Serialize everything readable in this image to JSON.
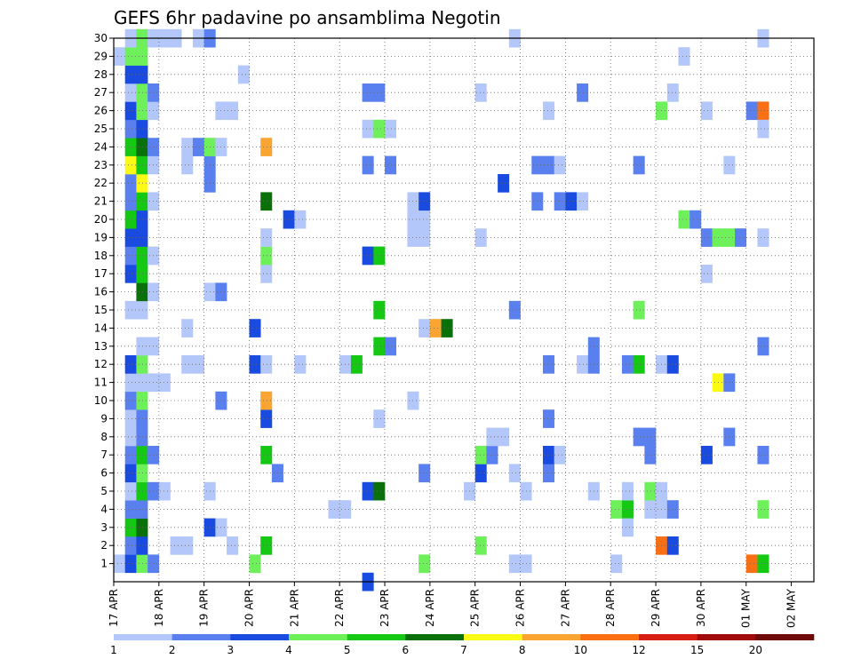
{
  "chart_data": {
    "type": "heatmap",
    "title": "GEFS 6hr padavine po ansamblima Negotin",
    "xlabel": "",
    "ylabel": "",
    "x_range": [
      0,
      62
    ],
    "y_range": [
      0,
      30
    ],
    "y_ticks": [
      "1",
      "2",
      "3",
      "4",
      "5",
      "6",
      "7",
      "8",
      "9",
      "10",
      "11",
      "12",
      "13",
      "14",
      "15",
      "16",
      "17",
      "18",
      "19",
      "20",
      "21",
      "22",
      "23",
      "24",
      "25",
      "26",
      "27",
      "28",
      "29",
      "30"
    ],
    "x_ticks": [
      {
        "label": "17 APR",
        "step": 0
      },
      {
        "label": "18 APR",
        "step": 4
      },
      {
        "label": "19 APR",
        "step": 8
      },
      {
        "label": "20 APR",
        "step": 12
      },
      {
        "label": "21 APR",
        "step": 16
      },
      {
        "label": "22 APR",
        "step": 20
      },
      {
        "label": "23 APR",
        "step": 24
      },
      {
        "label": "24 APR",
        "step": 28
      },
      {
        "label": "25 APR",
        "step": 32
      },
      {
        "label": "26 APR",
        "step": 36
      },
      {
        "label": "27 APR",
        "step": 40
      },
      {
        "label": "28 APR",
        "step": 44
      },
      {
        "label": "29 APR",
        "step": 48
      },
      {
        "label": "30 APR",
        "step": 52
      },
      {
        "label": "01 MAY",
        "step": 56
      },
      {
        "label": "02 MAY",
        "step": 60
      }
    ],
    "grid": true,
    "colorbar": {
      "labels": [
        "1",
        "2",
        "3",
        "4",
        "5",
        "6",
        "7",
        "8",
        "10",
        "12",
        "15",
        "20"
      ],
      "colors": [
        "#b4c7fa",
        "#5a80f0",
        "#1a4be0",
        "#6ef05a",
        "#14c814",
        "#0a700a",
        "#fafa14",
        "#faa532",
        "#fa6e14",
        "#d71e14",
        "#a00a0a",
        "#6e0a0a"
      ]
    },
    "cells": [
      {
        "t": 0,
        "m": 1,
        "v": 1
      },
      {
        "t": 1,
        "m": 1,
        "v": 3
      },
      {
        "t": 2,
        "m": 1,
        "v": 4
      },
      {
        "t": 3,
        "m": 1,
        "v": 2
      },
      {
        "t": 1,
        "m": 2,
        "v": 2
      },
      {
        "t": 2,
        "m": 2,
        "v": 3
      },
      {
        "t": 1,
        "m": 3,
        "v": 5
      },
      {
        "t": 2,
        "m": 3,
        "v": 6
      },
      {
        "t": 1,
        "m": 4,
        "v": 2
      },
      {
        "t": 2,
        "m": 4,
        "v": 2
      },
      {
        "t": 1,
        "m": 5,
        "v": 1
      },
      {
        "t": 2,
        "m": 5,
        "v": 5
      },
      {
        "t": 3,
        "m": 5,
        "v": 2
      },
      {
        "t": 4,
        "m": 5,
        "v": 1
      },
      {
        "t": 1,
        "m": 6,
        "v": 3
      },
      {
        "t": 2,
        "m": 6,
        "v": 4
      },
      {
        "t": 1,
        "m": 7,
        "v": 2
      },
      {
        "t": 2,
        "m": 7,
        "v": 5
      },
      {
        "t": 3,
        "m": 7,
        "v": 2
      },
      {
        "t": 1,
        "m": 8,
        "v": 1
      },
      {
        "t": 2,
        "m": 8,
        "v": 2
      },
      {
        "t": 1,
        "m": 9,
        "v": 1
      },
      {
        "t": 2,
        "m": 9,
        "v": 2
      },
      {
        "t": 1,
        "m": 10,
        "v": 2
      },
      {
        "t": 2,
        "m": 10,
        "v": 4
      },
      {
        "t": 1,
        "m": 11,
        "v": 1
      },
      {
        "t": 2,
        "m": 11,
        "v": 1
      },
      {
        "t": 3,
        "m": 11,
        "v": 1
      },
      {
        "t": 4,
        "m": 11,
        "v": 1
      },
      {
        "t": 1,
        "m": 12,
        "v": 3
      },
      {
        "t": 2,
        "m": 12,
        "v": 4
      },
      {
        "t": 2,
        "m": 13,
        "v": 1
      },
      {
        "t": 3,
        "m": 13,
        "v": 1
      },
      {
        "t": 1,
        "m": 15,
        "v": 1
      },
      {
        "t": 2,
        "m": 15,
        "v": 1
      },
      {
        "t": 2,
        "m": 16,
        "v": 6
      },
      {
        "t": 3,
        "m": 16,
        "v": 1
      },
      {
        "t": 1,
        "m": 17,
        "v": 3
      },
      {
        "t": 2,
        "m": 17,
        "v": 5
      },
      {
        "t": 1,
        "m": 18,
        "v": 2
      },
      {
        "t": 2,
        "m": 18,
        "v": 5
      },
      {
        "t": 3,
        "m": 18,
        "v": 1
      },
      {
        "t": 1,
        "m": 19,
        "v": 3
      },
      {
        "t": 2,
        "m": 19,
        "v": 3
      },
      {
        "t": 1,
        "m": 20,
        "v": 5
      },
      {
        "t": 2,
        "m": 20,
        "v": 3
      },
      {
        "t": 1,
        "m": 21,
        "v": 2
      },
      {
        "t": 2,
        "m": 21,
        "v": 5
      },
      {
        "t": 3,
        "m": 21,
        "v": 1
      },
      {
        "t": 1,
        "m": 22,
        "v": 2
      },
      {
        "t": 2,
        "m": 22,
        "v": 7
      },
      {
        "t": 1,
        "m": 23,
        "v": 7
      },
      {
        "t": 2,
        "m": 23,
        "v": 5
      },
      {
        "t": 3,
        "m": 23,
        "v": 1
      },
      {
        "t": 1,
        "m": 24,
        "v": 5
      },
      {
        "t": 2,
        "m": 24,
        "v": 6
      },
      {
        "t": 3,
        "m": 24,
        "v": 2
      },
      {
        "t": 1,
        "m": 25,
        "v": 2
      },
      {
        "t": 2,
        "m": 25,
        "v": 3
      },
      {
        "t": 1,
        "m": 26,
        "v": 3
      },
      {
        "t": 2,
        "m": 26,
        "v": 4
      },
      {
        "t": 3,
        "m": 26,
        "v": 1
      },
      {
        "t": 1,
        "m": 27,
        "v": 1
      },
      {
        "t": 2,
        "m": 27,
        "v": 4
      },
      {
        "t": 3,
        "m": 27,
        "v": 2
      },
      {
        "t": 1,
        "m": 28,
        "v": 3
      },
      {
        "t": 2,
        "m": 28,
        "v": 3
      },
      {
        "t": 0,
        "m": 29,
        "v": 1
      },
      {
        "t": 1,
        "m": 29,
        "v": 4
      },
      {
        "t": 2,
        "m": 29,
        "v": 4
      },
      {
        "t": 1,
        "m": 30,
        "v": 1
      },
      {
        "t": 2,
        "m": 30,
        "v": 4
      },
      {
        "t": 3,
        "m": 30,
        "v": 1
      },
      {
        "t": 4,
        "m": 30,
        "v": 1
      },
      {
        "t": 5,
        "m": 30,
        "v": 1
      },
      {
        "t": 7,
        "m": 30,
        "v": 1
      },
      {
        "t": 8,
        "m": 30,
        "v": 2
      },
      {
        "t": 5,
        "m": 2,
        "v": 1
      },
      {
        "t": 6,
        "m": 2,
        "v": 1
      },
      {
        "t": 8,
        "m": 3,
        "v": 3
      },
      {
        "t": 9,
        "m": 3,
        "v": 1
      },
      {
        "t": 8,
        "m": 5,
        "v": 1
      },
      {
        "t": 6,
        "m": 12,
        "v": 1
      },
      {
        "t": 7,
        "m": 12,
        "v": 1
      },
      {
        "t": 9,
        "m": 10,
        "v": 2
      },
      {
        "t": 6,
        "m": 14,
        "v": 1
      },
      {
        "t": 8,
        "m": 16,
        "v": 1
      },
      {
        "t": 9,
        "m": 16,
        "v": 2
      },
      {
        "t": 8,
        "m": 22,
        "v": 2
      },
      {
        "t": 6,
        "m": 23,
        "v": 1
      },
      {
        "t": 8,
        "m": 23,
        "v": 2
      },
      {
        "t": 6,
        "m": 24,
        "v": 1
      },
      {
        "t": 7,
        "m": 24,
        "v": 2
      },
      {
        "t": 8,
        "m": 24,
        "v": 4
      },
      {
        "t": 9,
        "m": 24,
        "v": 1
      },
      {
        "t": 9,
        "m": 26,
        "v": 1
      },
      {
        "t": 10,
        "m": 26,
        "v": 1
      },
      {
        "t": 10,
        "m": 2,
        "v": 1
      },
      {
        "t": 12,
        "m": 1,
        "v": 4
      },
      {
        "t": 13,
        "m": 2,
        "v": 5
      },
      {
        "t": 12,
        "m": 12,
        "v": 3
      },
      {
        "t": 13,
        "m": 12,
        "v": 1
      },
      {
        "t": 12,
        "m": 14,
        "v": 3
      },
      {
        "t": 13,
        "m": 9,
        "v": 3
      },
      {
        "t": 13,
        "m": 10,
        "v": 8
      },
      {
        "t": 14,
        "m": 6,
        "v": 2
      },
      {
        "t": 13,
        "m": 7,
        "v": 5
      },
      {
        "t": 13,
        "m": 17,
        "v": 1
      },
      {
        "t": 13,
        "m": 18,
        "v": 4
      },
      {
        "t": 13,
        "m": 19,
        "v": 1
      },
      {
        "t": 13,
        "m": 21,
        "v": 6
      },
      {
        "t": 13,
        "m": 24,
        "v": 8
      },
      {
        "t": 11,
        "m": 28,
        "v": 1
      },
      {
        "t": 15,
        "m": 20,
        "v": 3
      },
      {
        "t": 16,
        "m": 20,
        "v": 1
      },
      {
        "t": 16,
        "m": 12,
        "v": 1
      },
      {
        "t": 19,
        "m": 4,
        "v": 1
      },
      {
        "t": 20,
        "m": 4,
        "v": 1
      },
      {
        "t": 20,
        "m": 12,
        "v": 1
      },
      {
        "t": 21,
        "m": 12,
        "v": 5
      },
      {
        "t": 22,
        "m": 0,
        "v": 3
      },
      {
        "t": 22,
        "m": 5,
        "v": 3
      },
      {
        "t": 23,
        "m": 5,
        "v": 6
      },
      {
        "t": 23,
        "m": 9,
        "v": 1
      },
      {
        "t": 23,
        "m": 13,
        "v": 5
      },
      {
        "t": 24,
        "m": 13,
        "v": 2
      },
      {
        "t": 23,
        "m": 15,
        "v": 5
      },
      {
        "t": 22,
        "m": 18,
        "v": 3
      },
      {
        "t": 23,
        "m": 18,
        "v": 5
      },
      {
        "t": 22,
        "m": 23,
        "v": 2
      },
      {
        "t": 24,
        "m": 23,
        "v": 2
      },
      {
        "t": 22,
        "m": 25,
        "v": 1
      },
      {
        "t": 23,
        "m": 25,
        "v": 4
      },
      {
        "t": 24,
        "m": 25,
        "v": 1
      },
      {
        "t": 22,
        "m": 27,
        "v": 2
      },
      {
        "t": 23,
        "m": 27,
        "v": 2
      },
      {
        "t": 27,
        "m": 1,
        "v": 4
      },
      {
        "t": 27,
        "m": 6,
        "v": 2
      },
      {
        "t": 26,
        "m": 10,
        "v": 1
      },
      {
        "t": 27,
        "m": 14,
        "v": 1
      },
      {
        "t": 28,
        "m": 14,
        "v": 8
      },
      {
        "t": 29,
        "m": 14,
        "v": 6
      },
      {
        "t": 26,
        "m": 19,
        "v": 1
      },
      {
        "t": 27,
        "m": 19,
        "v": 1
      },
      {
        "t": 26,
        "m": 20,
        "v": 1
      },
      {
        "t": 27,
        "m": 20,
        "v": 1
      },
      {
        "t": 26,
        "m": 21,
        "v": 1
      },
      {
        "t": 27,
        "m": 21,
        "v": 3
      },
      {
        "t": 32,
        "m": 2,
        "v": 4
      },
      {
        "t": 31,
        "m": 5,
        "v": 1
      },
      {
        "t": 32,
        "m": 6,
        "v": 3
      },
      {
        "t": 32,
        "m": 7,
        "v": 4
      },
      {
        "t": 33,
        "m": 7,
        "v": 2
      },
      {
        "t": 33,
        "m": 8,
        "v": 1
      },
      {
        "t": 32,
        "m": 19,
        "v": 1
      },
      {
        "t": 32,
        "m": 27,
        "v": 1
      },
      {
        "t": 34,
        "m": 8,
        "v": 1
      },
      {
        "t": 34,
        "m": 22,
        "v": 3
      },
      {
        "t": 35,
        "m": 1,
        "v": 1
      },
      {
        "t": 35,
        "m": 15,
        "v": 2
      },
      {
        "t": 35,
        "m": 30,
        "v": 1
      },
      {
        "t": 36,
        "m": 1,
        "v": 1
      },
      {
        "t": 36,
        "m": 5,
        "v": 1
      },
      {
        "t": 35,
        "m": 6,
        "v": 1
      },
      {
        "t": 38,
        "m": 6,
        "v": 2
      },
      {
        "t": 38,
        "m": 9,
        "v": 2
      },
      {
        "t": 38,
        "m": 12,
        "v": 2
      },
      {
        "t": 37,
        "m": 21,
        "v": 2
      },
      {
        "t": 37,
        "m": 23,
        "v": 2
      },
      {
        "t": 38,
        "m": 23,
        "v": 2
      },
      {
        "t": 39,
        "m": 23,
        "v": 1
      },
      {
        "t": 38,
        "m": 26,
        "v": 1
      },
      {
        "t": 38,
        "m": 7,
        "v": 3
      },
      {
        "t": 39,
        "m": 7,
        "v": 1
      },
      {
        "t": 39,
        "m": 21,
        "v": 2
      },
      {
        "t": 40,
        "m": 21,
        "v": 3
      },
      {
        "t": 41,
        "m": 21,
        "v": 1
      },
      {
        "t": 41,
        "m": 12,
        "v": 1
      },
      {
        "t": 42,
        "m": 12,
        "v": 2
      },
      {
        "t": 42,
        "m": 5,
        "v": 1
      },
      {
        "t": 42,
        "m": 13,
        "v": 2
      },
      {
        "t": 41,
        "m": 27,
        "v": 2
      },
      {
        "t": 44,
        "m": 1,
        "v": 1
      },
      {
        "t": 44,
        "m": 4,
        "v": 4
      },
      {
        "t": 45,
        "m": 4,
        "v": 5
      },
      {
        "t": 45,
        "m": 3,
        "v": 1
      },
      {
        "t": 45,
        "m": 5,
        "v": 1
      },
      {
        "t": 45,
        "m": 12,
        "v": 2
      },
      {
        "t": 46,
        "m": 12,
        "v": 5
      },
      {
        "t": 46,
        "m": 15,
        "v": 4
      },
      {
        "t": 46,
        "m": 8,
        "v": 2
      },
      {
        "t": 46,
        "m": 23,
        "v": 2
      },
      {
        "t": 47,
        "m": 7,
        "v": 2
      },
      {
        "t": 47,
        "m": 8,
        "v": 2
      },
      {
        "t": 47,
        "m": 4,
        "v": 1
      },
      {
        "t": 48,
        "m": 4,
        "v": 1
      },
      {
        "t": 47,
        "m": 5,
        "v": 4
      },
      {
        "t": 48,
        "m": 5,
        "v": 1
      },
      {
        "t": 48,
        "m": 2,
        "v": 9
      },
      {
        "t": 49,
        "m": 2,
        "v": 3
      },
      {
        "t": 49,
        "m": 4,
        "v": 2
      },
      {
        "t": 48,
        "m": 12,
        "v": 1
      },
      {
        "t": 49,
        "m": 12,
        "v": 3
      },
      {
        "t": 48,
        "m": 26,
        "v": 4
      },
      {
        "t": 49,
        "m": 27,
        "v": 1
      },
      {
        "t": 50,
        "m": 20,
        "v": 4
      },
      {
        "t": 51,
        "m": 20,
        "v": 2
      },
      {
        "t": 50,
        "m": 29,
        "v": 1
      },
      {
        "t": 52,
        "m": 19,
        "v": 2
      },
      {
        "t": 52,
        "m": 17,
        "v": 1
      },
      {
        "t": 52,
        "m": 26,
        "v": 1
      },
      {
        "t": 52,
        "m": 7,
        "v": 3
      },
      {
        "t": 53,
        "m": 19,
        "v": 4
      },
      {
        "t": 54,
        "m": 19,
        "v": 4
      },
      {
        "t": 53,
        "m": 11,
        "v": 7
      },
      {
        "t": 54,
        "m": 11,
        "v": 2
      },
      {
        "t": 54,
        "m": 8,
        "v": 2
      },
      {
        "t": 54,
        "m": 23,
        "v": 1
      },
      {
        "t": 55,
        "m": 19,
        "v": 2
      },
      {
        "t": 56,
        "m": 1,
        "v": 9
      },
      {
        "t": 57,
        "m": 1,
        "v": 5
      },
      {
        "t": 57,
        "m": 4,
        "v": 4
      },
      {
        "t": 57,
        "m": 7,
        "v": 2
      },
      {
        "t": 57,
        "m": 13,
        "v": 2
      },
      {
        "t": 56,
        "m": 26,
        "v": 2
      },
      {
        "t": 57,
        "m": 26,
        "v": 9
      },
      {
        "t": 57,
        "m": 25,
        "v": 1
      },
      {
        "t": 57,
        "m": 30,
        "v": 1
      },
      {
        "t": 57,
        "m": 19,
        "v": 1
      }
    ]
  }
}
